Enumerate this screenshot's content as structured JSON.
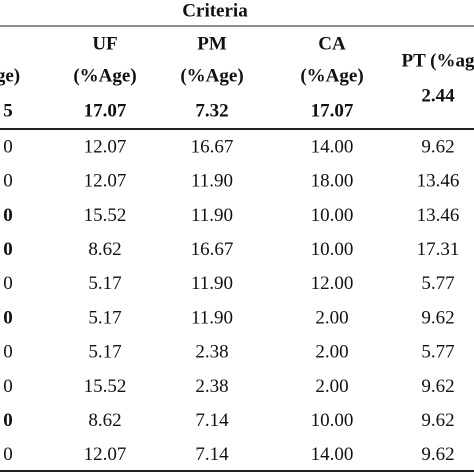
{
  "header": {
    "title": "Criteria",
    "columns": [
      {
        "lines": [
          "ge)"
        ],
        "weight": "5"
      },
      {
        "lines": [
          "UF",
          "(%Age)"
        ],
        "weight": "17.07"
      },
      {
        "lines": [
          "PM",
          "(%Age)"
        ],
        "weight": "7.32"
      },
      {
        "lines": [
          "CA",
          "(%Age)"
        ],
        "weight": "17.07"
      },
      {
        "lines": [
          "PT (%ag"
        ],
        "weight": "2.44"
      }
    ]
  },
  "table": {
    "rows": [
      {
        "cells": [
          "0",
          "12.07",
          "16.67",
          "14.00",
          "9.62"
        ],
        "bold_first": false
      },
      {
        "cells": [
          "0",
          "12.07",
          "11.90",
          "18.00",
          "13.46"
        ],
        "bold_first": false
      },
      {
        "cells": [
          "0",
          "15.52",
          "11.90",
          "10.00",
          "13.46"
        ],
        "bold_first": true
      },
      {
        "cells": [
          "0",
          "8.62",
          "16.67",
          "10.00",
          "17.31"
        ],
        "bold_first": true
      },
      {
        "cells": [
          "0",
          "5.17",
          "11.90",
          "12.00",
          "5.77"
        ],
        "bold_first": false
      },
      {
        "cells": [
          "0",
          "5.17",
          "11.90",
          "2.00",
          "9.62"
        ],
        "bold_first": true
      },
      {
        "cells": [
          "0",
          "5.17",
          "2.38",
          "2.00",
          "5.77"
        ],
        "bold_first": false
      },
      {
        "cells": [
          "0",
          "15.52",
          "2.38",
          "2.00",
          "9.62"
        ],
        "bold_first": false
      },
      {
        "cells": [
          "0",
          "8.62",
          "7.14",
          "10.00",
          "9.62"
        ],
        "bold_first": true
      },
      {
        "cells": [
          "0",
          "12.07",
          "7.14",
          "14.00",
          "9.62"
        ],
        "bold_first": false
      }
    ]
  }
}
